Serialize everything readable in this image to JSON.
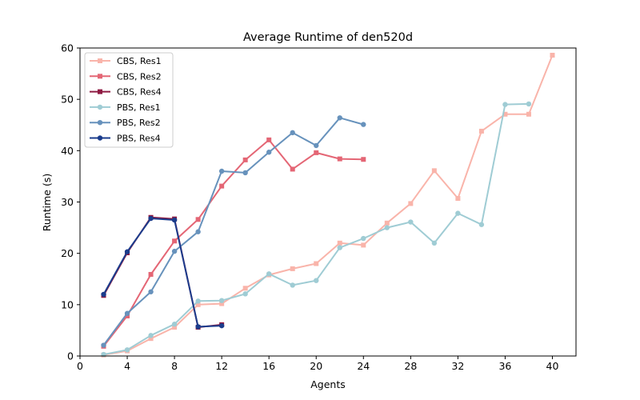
{
  "chart_data": {
    "type": "line",
    "title": "Average Runtime of den520d",
    "xlabel": "Agents",
    "ylabel": "Runtime (s)",
    "xlim": [
      0,
      42
    ],
    "ylim": [
      0,
      60
    ],
    "xticks": [
      0,
      4,
      8,
      12,
      16,
      20,
      24,
      28,
      32,
      36,
      40
    ],
    "yticks": [
      0,
      10,
      20,
      30,
      40,
      50,
      60
    ],
    "grid": false,
    "legend_position": "upper-left",
    "series": [
      {
        "name": "CBS, Res1",
        "color": "#F9B4AA",
        "marker": "square",
        "x": [
          2,
          4,
          6,
          8,
          10,
          12,
          14,
          16,
          18,
          20,
          22,
          24,
          26,
          28,
          30,
          32,
          34,
          36,
          38,
          40
        ],
        "y": [
          0.2,
          1.0,
          3.4,
          5.6,
          10.0,
          10.2,
          13.2,
          15.8,
          17.0,
          18.0,
          22.0,
          21.6,
          25.9,
          29.7,
          36.1,
          30.7,
          43.8,
          47.1,
          47.1,
          58.6
        ]
      },
      {
        "name": "CBS, Res2",
        "color": "#E46675",
        "marker": "square",
        "x": [
          2,
          4,
          6,
          8,
          10,
          12,
          14,
          16,
          18,
          20,
          22,
          24
        ],
        "y": [
          1.9,
          7.8,
          15.9,
          22.4,
          26.6,
          33.1,
          38.2,
          42.1,
          36.4,
          39.6,
          38.4,
          38.3
        ]
      },
      {
        "name": "CBS, Res4",
        "color": "#8E1A42",
        "marker": "square",
        "x": [
          2,
          4,
          6,
          8,
          10,
          12
        ],
        "y": [
          11.8,
          20.1,
          27.0,
          26.7,
          5.6,
          6.1
        ]
      },
      {
        "name": "PBS, Res1",
        "color": "#9FCCD4",
        "marker": "circle",
        "x": [
          2,
          4,
          6,
          8,
          10,
          12,
          14,
          16,
          18,
          20,
          22,
          24,
          26,
          28,
          30,
          32,
          34,
          36,
          38
        ],
        "y": [
          0.3,
          1.2,
          4.0,
          6.2,
          10.7,
          10.8,
          12.1,
          16.0,
          13.8,
          14.7,
          21.1,
          22.9,
          25.0,
          26.1,
          22.0,
          27.8,
          25.6,
          49.0,
          49.1
        ]
      },
      {
        "name": "PBS, Res2",
        "color": "#6792BC",
        "marker": "circle",
        "x": [
          2,
          4,
          6,
          8,
          10,
          12,
          14,
          16,
          18,
          20,
          22,
          24
        ],
        "y": [
          2.1,
          8.3,
          12.5,
          20.4,
          24.2,
          36.0,
          35.7,
          39.7,
          43.5,
          41.0,
          46.4,
          45.1
        ]
      },
      {
        "name": "PBS, Res4",
        "color": "#1B3C8C",
        "marker": "circle",
        "x": [
          2,
          4,
          6,
          8,
          10,
          12
        ],
        "y": [
          12.0,
          20.3,
          26.8,
          26.5,
          5.7,
          5.9
        ]
      }
    ]
  }
}
